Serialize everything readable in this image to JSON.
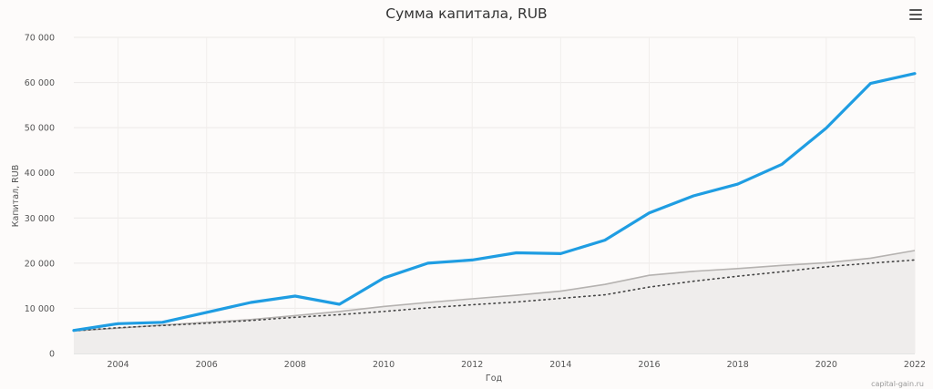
{
  "chart_data": {
    "type": "line",
    "title": "Сумма капитала, RUB",
    "xlabel": "Год",
    "ylabel": "Капитал, RUB",
    "x": [
      2003,
      2004,
      2005,
      2006,
      2007,
      2008,
      2009,
      2010,
      2011,
      2012,
      2013,
      2014,
      2015,
      2016,
      2017,
      2018,
      2019,
      2020,
      2021,
      2022
    ],
    "xlim": [
      2003,
      2022
    ],
    "ylim": [
      0,
      70000
    ],
    "xticks": [
      "2004",
      "2006",
      "2008",
      "2010",
      "2012",
      "2014",
      "2016",
      "2018",
      "2020",
      "2022"
    ],
    "yticks": [
      "0",
      "10 000",
      "20 000",
      "30 000",
      "40 000",
      "50 000",
      "60 000",
      "70 000"
    ],
    "grid": true,
    "series": [
      {
        "style": "area",
        "color": "#b5b2b0",
        "fill": "#efedec",
        "values": [
          5000,
          5600,
          6300,
          6900,
          7500,
          8400,
          9300,
          10400,
          11300,
          12100,
          12900,
          13800,
          15300,
          17300,
          18200,
          18800,
          19500,
          20100,
          21100,
          22800
        ]
      },
      {
        "style": "dotted",
        "color": "#444444",
        "values": [
          5000,
          5700,
          6200,
          6700,
          7300,
          8000,
          8600,
          9300,
          10100,
          10800,
          11400,
          12200,
          13000,
          14700,
          16000,
          17100,
          18100,
          19200,
          20000,
          20700
        ]
      },
      {
        "style": "line",
        "color": "#1f9de2",
        "values": [
          5100,
          6600,
          6900,
          9100,
          11300,
          12700,
          10900,
          16700,
          20000,
          20700,
          22300,
          22100,
          25100,
          31100,
          34900,
          37500,
          41900,
          49900,
          59800,
          62000
        ]
      }
    ]
  },
  "menu": {
    "icon": "hamburger-menu-icon"
  },
  "credit": "capital-gain.ru"
}
